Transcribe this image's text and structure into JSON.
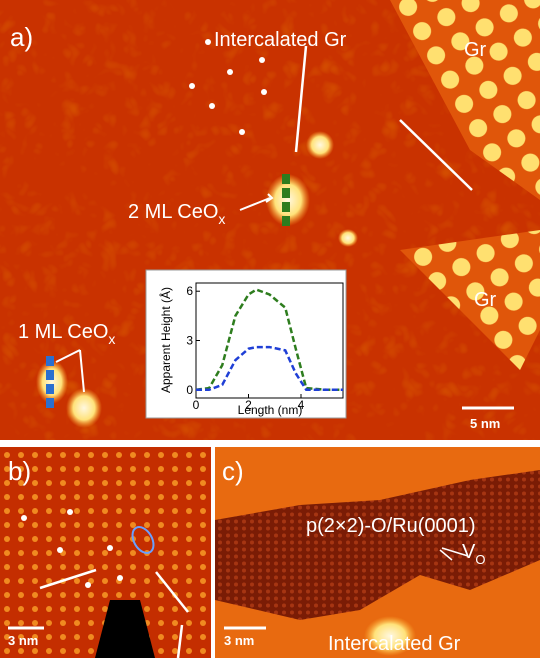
{
  "panel_a": {
    "label": "a)",
    "intercalated": "Intercalated Gr",
    "gr_top": "Gr",
    "gr_right": "Gr",
    "ceox_2ml": {
      "text": "2 ML CeO",
      "sub": "x"
    },
    "ceox_1ml": {
      "text": "1 ML CeO",
      "sub": "x"
    },
    "scale_bar": "5 nm"
  },
  "panel_b": {
    "label": "b)",
    "scale_bar": "3 nm"
  },
  "panel_c": {
    "label": "c)",
    "structure": "p(2×2)-O/Ru(0001)",
    "vacancy": {
      "text": "V",
      "sub": "O"
    },
    "scale_bar": "3 nm",
    "region": "Intercalated Gr"
  },
  "chart_data": {
    "type": "line",
    "x_label": "Length (nm)",
    "y_label": "Apparent Height (Å)",
    "x": [
      0,
      0.5,
      1,
      1.5,
      2,
      2.3,
      2.8,
      3.4,
      3.8,
      4.2,
      5,
      5.6
    ],
    "series": [
      {
        "color": "#2e7d1e",
        "values": [
          0,
          0.1,
          1.5,
          4.5,
          5.8,
          6.1,
          5.8,
          5.0,
          2.5,
          0.1,
          0,
          0
        ]
      },
      {
        "color": "#1f3fd6",
        "values": [
          0,
          0,
          0.3,
          1.8,
          2.5,
          2.6,
          2.6,
          2.4,
          1.0,
          0,
          0,
          0
        ]
      }
    ],
    "xlim": [
      0,
      5.6
    ],
    "ylim": [
      -0.5,
      6.5
    ],
    "xticks": [
      0,
      2,
      4
    ],
    "yticks": [
      0,
      3,
      6
    ]
  }
}
